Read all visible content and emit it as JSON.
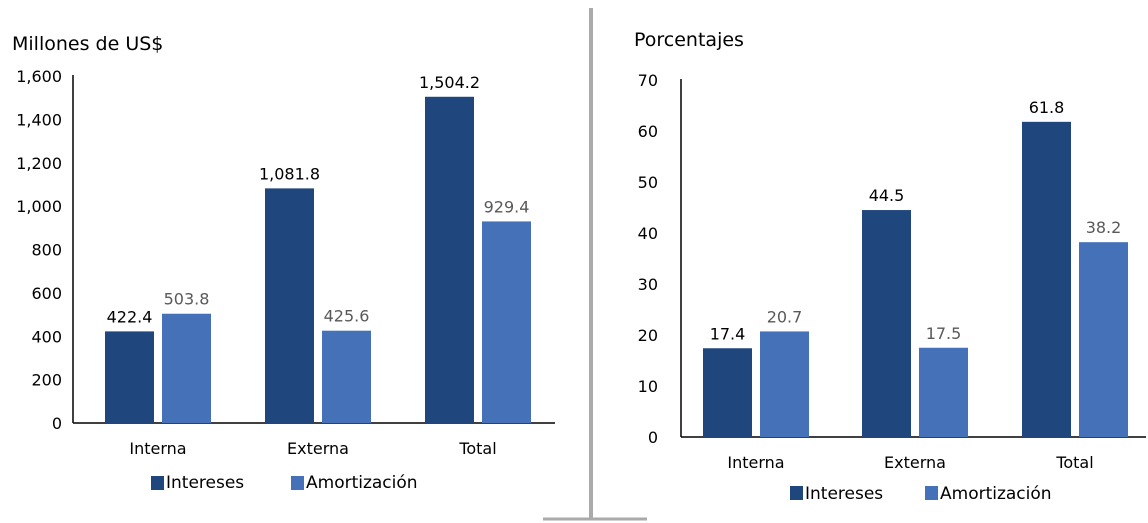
{
  "colors": {
    "intereses": "#1F477D",
    "amortizacion": "#4571B9",
    "divider": "#AAAAAA",
    "axis": "#000000",
    "light_label": "#595959"
  },
  "chart_data": [
    {
      "type": "bar",
      "title": "Millones de US$",
      "categories": [
        "Interna",
        "Externa",
        "Total"
      ],
      "series": [
        {
          "name": "Intereses",
          "values": [
            422.4,
            1081.8,
            1504.2
          ],
          "labels": [
            "422.4",
            "1,081.8",
            "1,504.2"
          ]
        },
        {
          "name": "Amortización",
          "values": [
            503.8,
            425.6,
            929.4
          ],
          "labels": [
            "503.8",
            "425.6",
            "929.4"
          ]
        }
      ],
      "ylim": [
        0,
        1600
      ],
      "yticks": [
        "0",
        "200",
        "400",
        "600",
        "800",
        "1,000",
        "1,200",
        "1,400",
        "1,600"
      ],
      "legend_position": "bottom",
      "grid": false
    },
    {
      "type": "bar",
      "title": "Porcentajes",
      "categories": [
        "Interna",
        "Externa",
        "Total"
      ],
      "series": [
        {
          "name": "Intereses",
          "values": [
            17.4,
            44.5,
            61.8
          ],
          "labels": [
            "17.4",
            "44.5",
            "61.8"
          ]
        },
        {
          "name": "Amortización",
          "values": [
            20.7,
            17.5,
            38.2
          ],
          "labels": [
            "20.7",
            "17.5",
            "38.2"
          ]
        }
      ],
      "ylim": [
        0,
        70
      ],
      "yticks": [
        "0",
        "10",
        "20",
        "30",
        "40",
        "50",
        "60",
        "70"
      ],
      "legend_position": "bottom",
      "grid": false
    }
  ]
}
